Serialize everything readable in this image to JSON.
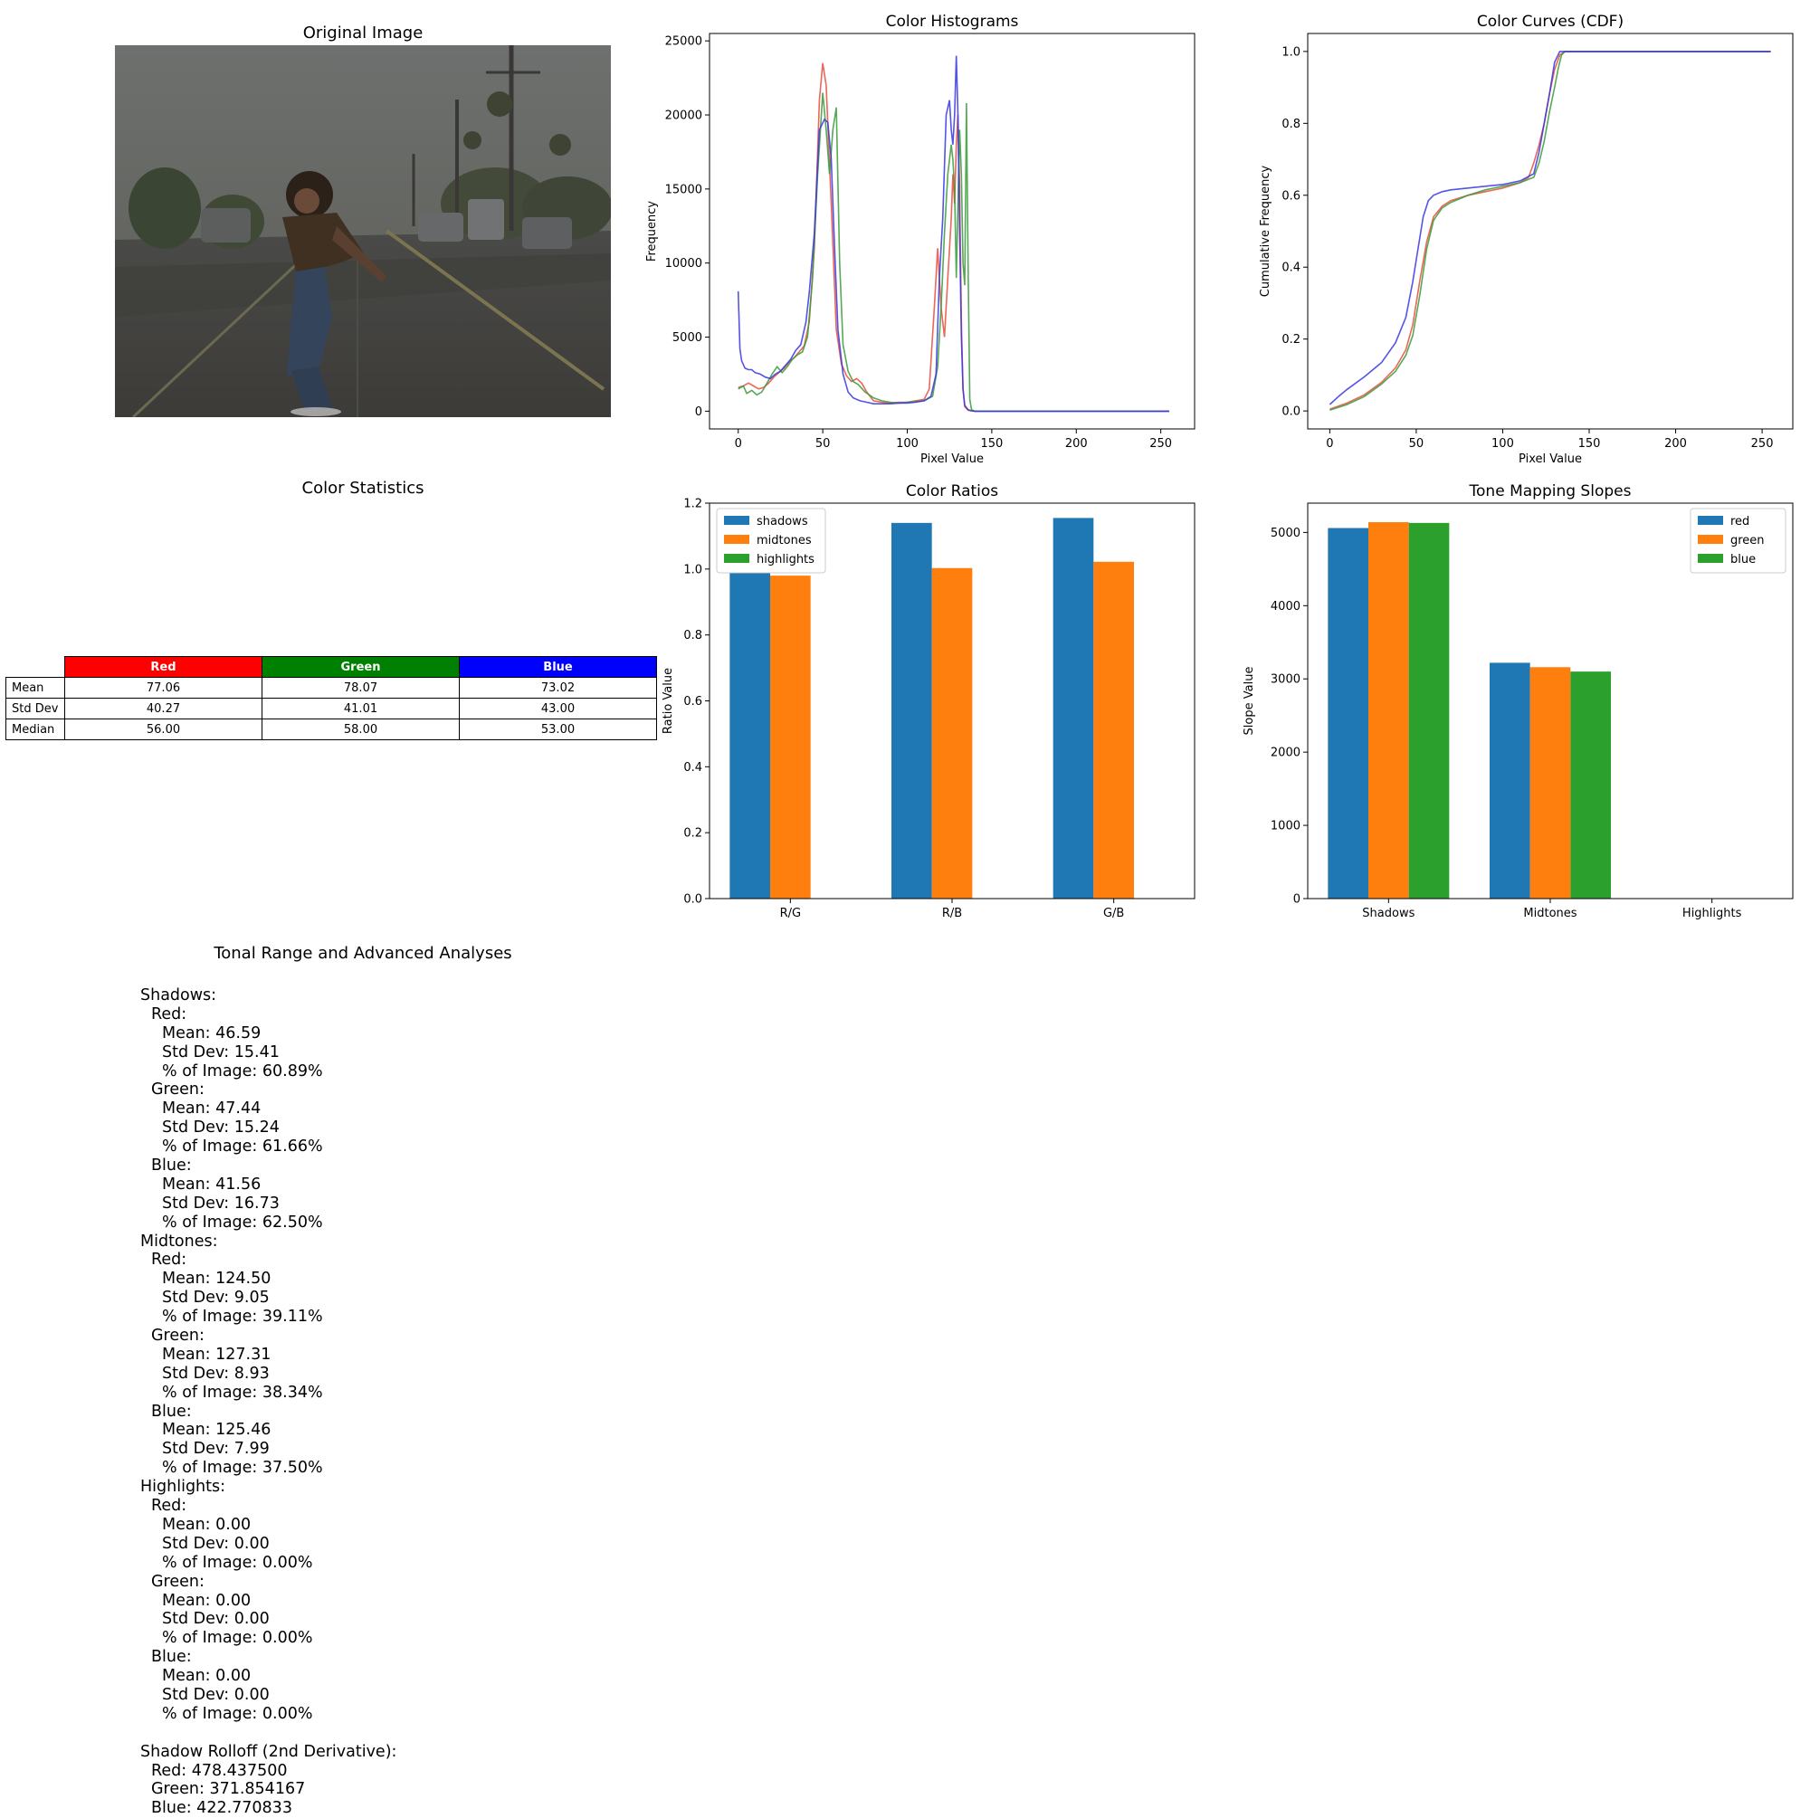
{
  "panels": {
    "original_image": "Original Image",
    "color_statistics": "Color Statistics",
    "tonal_range": "Tonal Range and Advanced Analyses"
  },
  "colors": {
    "red": "#e74c3c",
    "green": "#3a9a3a",
    "blue": "#3636e0",
    "tab_blue": "#1f77b4",
    "tab_orange": "#ff7f0e",
    "tab_green": "#2ca02c",
    "stat_red": "#ff0000",
    "stat_green": "#008000",
    "stat_blue": "#0000ff"
  },
  "stats_table": {
    "headers": [
      "Red",
      "Green",
      "Blue"
    ],
    "rows": [
      {
        "label": "Mean",
        "values": [
          "77.06",
          "78.07",
          "73.02"
        ]
      },
      {
        "label": "Std Dev",
        "values": [
          "40.27",
          "41.01",
          "43.00"
        ]
      },
      {
        "label": "Median",
        "values": [
          "56.00",
          "58.00",
          "53.00"
        ]
      }
    ]
  },
  "tonal_text": [
    {
      "indent": 0,
      "text": "Shadows:"
    },
    {
      "indent": 1,
      "text": "Red:"
    },
    {
      "indent": 2,
      "text": "Mean: 46.59"
    },
    {
      "indent": 2,
      "text": "Std Dev: 15.41"
    },
    {
      "indent": 2,
      "text": "% of Image: 60.89%"
    },
    {
      "indent": 1,
      "text": "Green:"
    },
    {
      "indent": 2,
      "text": "Mean: 47.44"
    },
    {
      "indent": 2,
      "text": "Std Dev: 15.24"
    },
    {
      "indent": 2,
      "text": "% of Image: 61.66%"
    },
    {
      "indent": 1,
      "text": "Blue:"
    },
    {
      "indent": 2,
      "text": "Mean: 41.56"
    },
    {
      "indent": 2,
      "text": "Std Dev: 16.73"
    },
    {
      "indent": 2,
      "text": "% of Image: 62.50%"
    },
    {
      "indent": 0,
      "text": "Midtones:"
    },
    {
      "indent": 1,
      "text": "Red:"
    },
    {
      "indent": 2,
      "text": "Mean: 124.50"
    },
    {
      "indent": 2,
      "text": "Std Dev: 9.05"
    },
    {
      "indent": 2,
      "text": "% of Image: 39.11%"
    },
    {
      "indent": 1,
      "text": "Green:"
    },
    {
      "indent": 2,
      "text": "Mean: 127.31"
    },
    {
      "indent": 2,
      "text": "Std Dev: 8.93"
    },
    {
      "indent": 2,
      "text": "% of Image: 38.34%"
    },
    {
      "indent": 1,
      "text": "Blue:"
    },
    {
      "indent": 2,
      "text": "Mean: 125.46"
    },
    {
      "indent": 2,
      "text": "Std Dev: 7.99"
    },
    {
      "indent": 2,
      "text": "% of Image: 37.50%"
    },
    {
      "indent": 0,
      "text": "Highlights:"
    },
    {
      "indent": 1,
      "text": "Red:"
    },
    {
      "indent": 2,
      "text": "Mean: 0.00"
    },
    {
      "indent": 2,
      "text": "Std Dev: 0.00"
    },
    {
      "indent": 2,
      "text": "% of Image: 0.00%"
    },
    {
      "indent": 1,
      "text": "Green:"
    },
    {
      "indent": 2,
      "text": "Mean: 0.00"
    },
    {
      "indent": 2,
      "text": "Std Dev: 0.00"
    },
    {
      "indent": 2,
      "text": "% of Image: 0.00%"
    },
    {
      "indent": 1,
      "text": "Blue:"
    },
    {
      "indent": 2,
      "text": "Mean: 0.00"
    },
    {
      "indent": 2,
      "text": "Std Dev: 0.00"
    },
    {
      "indent": 2,
      "text": "% of Image: 0.00%"
    },
    {
      "indent": 0,
      "text": ""
    },
    {
      "indent": 0,
      "text": "Shadow Rolloff (2nd Derivative):"
    },
    {
      "indent": 1,
      "text": "Red: 478.437500"
    },
    {
      "indent": 1,
      "text": "Green: 371.854167"
    },
    {
      "indent": 1,
      "text": "Blue: 422.770833"
    }
  ],
  "chart_data": [
    {
      "id": "histograms",
      "type": "line",
      "title": "Color Histograms",
      "xlabel": "Pixel Value",
      "ylabel": "Frequency",
      "xlim": [
        -17,
        270
      ],
      "ylim": [
        -1200,
        25500
      ],
      "xticks": [
        0,
        50,
        100,
        150,
        200,
        250
      ],
      "yticks": [
        0,
        5000,
        10000,
        15000,
        20000,
        25000
      ],
      "series": [
        {
          "name": "red",
          "x": [
            0,
            3,
            6,
            9,
            12,
            15,
            18,
            21,
            24,
            27,
            30,
            33,
            36,
            39,
            42,
            45,
            48,
            50,
            52,
            55,
            58,
            61,
            64,
            67,
            70,
            73,
            76,
            80,
            85,
            90,
            95,
            100,
            105,
            110,
            113,
            116,
            118,
            120,
            122,
            124,
            126,
            127,
            128,
            129,
            130,
            131,
            132,
            133,
            134,
            136,
            138,
            140,
            150,
            200,
            255
          ],
          "y": [
            1600,
            1700,
            1900,
            1700,
            1500,
            1600,
            1900,
            2300,
            2600,
            2900,
            3300,
            3600,
            4000,
            4400,
            6000,
            11000,
            21000,
            23500,
            22000,
            14000,
            5500,
            3200,
            2400,
            2000,
            2200,
            1900,
            1300,
            700,
            600,
            550,
            600,
            600,
            700,
            800,
            1500,
            7000,
            11000,
            7000,
            5000,
            9000,
            13000,
            16000,
            14000,
            18000,
            20000,
            15000,
            6000,
            1500,
            300,
            60,
            20,
            0,
            0,
            0,
            0
          ]
        },
        {
          "name": "green",
          "x": [
            0,
            3,
            5,
            8,
            11,
            14,
            17,
            20,
            23,
            26,
            29,
            32,
            35,
            38,
            41,
            44,
            47,
            50,
            52,
            54,
            56,
            58,
            60,
            62,
            65,
            68,
            71,
            75,
            80,
            85,
            90,
            95,
            100,
            105,
            110,
            115,
            118,
            120,
            122,
            124,
            126,
            127,
            128,
            129,
            130,
            131,
            132,
            133,
            134,
            135,
            136,
            137,
            138,
            140,
            150,
            200,
            255
          ],
          "y": [
            1500,
            1700,
            1200,
            1400,
            1100,
            1300,
            1900,
            2500,
            3000,
            2600,
            3000,
            3500,
            3800,
            4000,
            5000,
            9000,
            16000,
            21500,
            19000,
            16000,
            19000,
            20500,
            10000,
            4500,
            2700,
            2000,
            1800,
            1300,
            900,
            700,
            600,
            550,
            600,
            650,
            700,
            1000,
            3000,
            7000,
            12000,
            16000,
            18000,
            17000,
            15000,
            9000,
            14000,
            19000,
            16000,
            10000,
            8500,
            20800,
            10000,
            800,
            100,
            0,
            0,
            0,
            0
          ]
        },
        {
          "name": "blue",
          "x": [
            0,
            1,
            2,
            4,
            6,
            8,
            10,
            13,
            16,
            19,
            22,
            25,
            28,
            31,
            34,
            37,
            40,
            42,
            45,
            48,
            51,
            53,
            55,
            57,
            59,
            62,
            65,
            68,
            72,
            76,
            80,
            85,
            90,
            95,
            100,
            105,
            110,
            114,
            117,
            119,
            121,
            123,
            125,
            126,
            127,
            128,
            129,
            130,
            131,
            132,
            133,
            134,
            136,
            138,
            140,
            150,
            200,
            255
          ],
          "y": [
            8100,
            4200,
            3400,
            2900,
            2800,
            2800,
            2600,
            2500,
            2300,
            2200,
            2500,
            2700,
            3100,
            3500,
            4100,
            4500,
            6000,
            8000,
            12000,
            19000,
            19700,
            19500,
            17000,
            11000,
            5500,
            2500,
            1300,
            900,
            700,
            600,
            500,
            500,
            500,
            550,
            550,
            600,
            700,
            1000,
            2500,
            9000,
            13000,
            20000,
            21000,
            19000,
            18000,
            20000,
            24000,
            20000,
            12000,
            5000,
            1500,
            400,
            100,
            20,
            0,
            0,
            0,
            0
          ]
        }
      ]
    },
    {
      "id": "cdf",
      "type": "line",
      "title": "Color Curves (CDF)",
      "xlabel": "Pixel Value",
      "ylabel": "Cumulative Frequency",
      "xlim": [
        -12.75,
        267.75
      ],
      "ylim": [
        -0.05,
        1.05
      ],
      "xticks": [
        0,
        50,
        100,
        150,
        200,
        250
      ],
      "yticks": [
        0.0,
        0.2,
        0.4,
        0.6,
        0.8,
        1.0
      ],
      "series": [
        {
          "name": "red",
          "x": [
            0,
            10,
            20,
            30,
            38,
            44,
            48,
            52,
            56,
            60,
            65,
            70,
            80,
            90,
            100,
            110,
            115,
            118,
            121,
            124,
            127,
            130,
            133,
            136,
            140,
            200,
            255
          ],
          "y": [
            0.005,
            0.022,
            0.045,
            0.08,
            0.12,
            0.17,
            0.24,
            0.36,
            0.47,
            0.54,
            0.57,
            0.585,
            0.6,
            0.61,
            0.62,
            0.635,
            0.65,
            0.69,
            0.74,
            0.8,
            0.88,
            0.95,
            0.99,
            1.0,
            1.0,
            1.0,
            1.0
          ]
        },
        {
          "name": "green",
          "x": [
            0,
            10,
            20,
            30,
            38,
            44,
            48,
            52,
            56,
            60,
            65,
            70,
            80,
            90,
            100,
            110,
            118,
            121,
            124,
            127,
            130,
            132,
            134,
            136,
            140,
            200,
            255
          ],
          "y": [
            0.002,
            0.018,
            0.04,
            0.075,
            0.11,
            0.155,
            0.21,
            0.32,
            0.45,
            0.53,
            0.565,
            0.58,
            0.6,
            0.615,
            0.625,
            0.635,
            0.65,
            0.69,
            0.75,
            0.83,
            0.9,
            0.95,
            0.99,
            1.0,
            1.0,
            1.0,
            1.0
          ]
        },
        {
          "name": "blue",
          "x": [
            0,
            5,
            10,
            20,
            30,
            38,
            44,
            48,
            51,
            54,
            57,
            60,
            65,
            70,
            80,
            90,
            100,
            110,
            118,
            121,
            124,
            127,
            130,
            133,
            136,
            140,
            200,
            255
          ],
          "y": [
            0.018,
            0.04,
            0.06,
            0.095,
            0.135,
            0.19,
            0.26,
            0.36,
            0.45,
            0.54,
            0.585,
            0.6,
            0.61,
            0.615,
            0.62,
            0.625,
            0.63,
            0.64,
            0.66,
            0.72,
            0.8,
            0.88,
            0.97,
            1.0,
            1.0,
            1.0,
            1.0,
            1.0
          ]
        }
      ]
    },
    {
      "id": "ratios",
      "type": "bar",
      "title": "Color Ratios",
      "ylabel": "Ratio Value",
      "categories": [
        "R/G",
        "R/B",
        "G/B"
      ],
      "ylim": [
        0,
        1.2
      ],
      "yticks": [
        0.0,
        0.2,
        0.4,
        0.6,
        0.8,
        1.0,
        1.2
      ],
      "legend": "top-left",
      "series": [
        {
          "name": "shadows",
          "values": [
            0.99,
            1.14,
            1.155
          ]
        },
        {
          "name": "midtones",
          "values": [
            0.98,
            1.003,
            1.022
          ]
        },
        {
          "name": "highlights",
          "values": [
            0,
            0,
            0
          ]
        }
      ]
    },
    {
      "id": "slopes",
      "type": "bar",
      "title": "Tone Mapping Slopes",
      "ylabel": "Slope Value",
      "categories": [
        "Shadows",
        "Midtones",
        "Highlights"
      ],
      "ylim": [
        0,
        5400
      ],
      "yticks": [
        0,
        1000,
        2000,
        3000,
        4000,
        5000
      ],
      "legend": "top-right",
      "series": [
        {
          "name": "red",
          "values": [
            5060,
            3220,
            0
          ]
        },
        {
          "name": "green",
          "values": [
            5140,
            3160,
            0
          ]
        },
        {
          "name": "blue",
          "values": [
            5130,
            3100,
            0
          ]
        }
      ]
    }
  ]
}
